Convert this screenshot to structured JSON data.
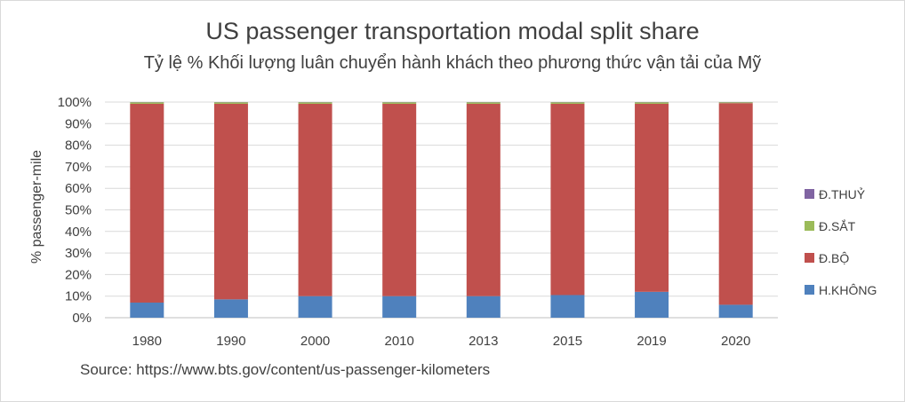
{
  "chart_data": {
    "type": "bar",
    "stacked": true,
    "percent_stacked": true,
    "title": "US passenger transportation modal split share",
    "subtitle": "Tỷ lệ % Khối lượng luân chuyển hành khách theo phương thức vận tải của Mỹ",
    "ylabel": "% passenger-mile",
    "xlabel": "",
    "categories": [
      "1980",
      "1990",
      "2000",
      "2010",
      "2013",
      "2015",
      "2019",
      "2020"
    ],
    "y_ticks": [
      "0%",
      "10%",
      "20%",
      "30%",
      "40%",
      "50%",
      "60%",
      "70%",
      "80%",
      "90%",
      "100%"
    ],
    "ylim": [
      0,
      100
    ],
    "grid": true,
    "legend_position": "right",
    "series": [
      {
        "name": "H.KHÔNG",
        "color": "#4f81bd",
        "values": [
          7,
          8.5,
          10,
          10,
          10,
          10.5,
          12,
          6
        ]
      },
      {
        "name": "Đ.BỘ",
        "color": "#c0504d",
        "values": [
          92.2,
          90.7,
          89.2,
          89.2,
          89.2,
          88.7,
          87.2,
          93.5
        ]
      },
      {
        "name": "Đ.SẮT",
        "color": "#9bbb59",
        "values": [
          0.7,
          0.7,
          0.7,
          0.7,
          0.7,
          0.7,
          0.7,
          0.4
        ]
      },
      {
        "name": "Đ.THUỶ",
        "color": "#8064a2",
        "values": [
          0.1,
          0.1,
          0.1,
          0.1,
          0.1,
          0.1,
          0.1,
          0.1
        ]
      }
    ],
    "source": "Source: https://www.bts.gov/content/us-passenger-kilometers"
  }
}
